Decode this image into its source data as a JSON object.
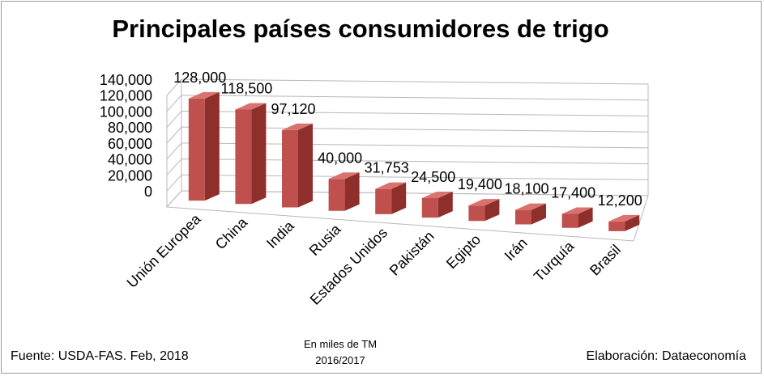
{
  "chart_data": {
    "type": "bar",
    "title": "Principales países consumidores de trigo",
    "categories": [
      "Unión Europea",
      "China",
      "India",
      "Rusia",
      "Estados Unidos",
      "Pakistán",
      "Egipto",
      "Irán",
      "Turquía",
      "Brasil"
    ],
    "values": [
      128000,
      118500,
      97120,
      40000,
      31753,
      24500,
      19400,
      18100,
      17400,
      12200
    ],
    "value_labels": [
      "128,000",
      "118,500",
      "97,120",
      "40,000",
      "31,753",
      "24,500",
      "19,400",
      "18,100",
      "17,400",
      "12,200"
    ],
    "yticks": [
      "0",
      "20,000",
      "40,000",
      "60,000",
      "80,000",
      "100,000",
      "120,000",
      "140,000"
    ],
    "ylim": [
      0,
      140000
    ],
    "xlabel": "",
    "ylabel": "",
    "grid": true,
    "style": "3d",
    "bar_color": "#c0504d",
    "grid_color": "#b8b8b8"
  },
  "footer": {
    "source": "Fuente:  USDA-FAS. Feb, 2018",
    "units": "En miles de TM",
    "period": "2016/2017",
    "credit": "Elaboración: Dataeconomía"
  }
}
